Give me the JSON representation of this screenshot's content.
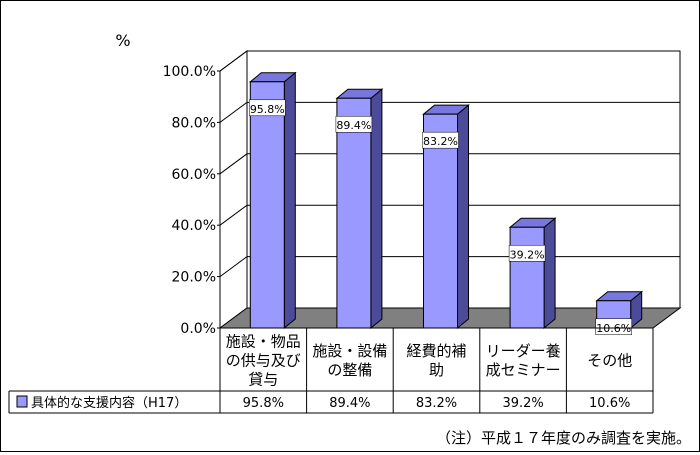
{
  "chart_data": {
    "type": "bar",
    "y_unit_label": "%",
    "categories": [
      [
        "施設・物品",
        "の供与及び",
        "貸与"
      ],
      [
        "施設・設備",
        "の整備"
      ],
      [
        "経費的補",
        "助"
      ],
      [
        "リーダー養",
        "成セミナー"
      ],
      [
        "その他"
      ]
    ],
    "series": [
      {
        "name": "具体的な支援内容（H17）",
        "values": [
          95.8,
          89.4,
          83.2,
          39.2,
          10.6
        ],
        "value_labels": [
          "95.8%",
          "89.4%",
          "83.2%",
          "39.2%",
          "10.6%"
        ],
        "color": "#9999ff"
      }
    ],
    "ylim": [
      0,
      100
    ],
    "yticks": [
      0,
      20,
      40,
      60,
      80,
      100
    ],
    "ytick_labels": [
      "0.0%",
      "20.0%",
      "40.0%",
      "60.0%",
      "80.0%",
      "100.0%"
    ],
    "grid": true,
    "legend": "data-table",
    "colors": {
      "bar_front": "#9999ff",
      "bar_side": "#4b4b99",
      "bar_top": "#7777dd",
      "floor": "#808080"
    }
  },
  "note": "（注）平成１７年度のみ調査を実施。"
}
